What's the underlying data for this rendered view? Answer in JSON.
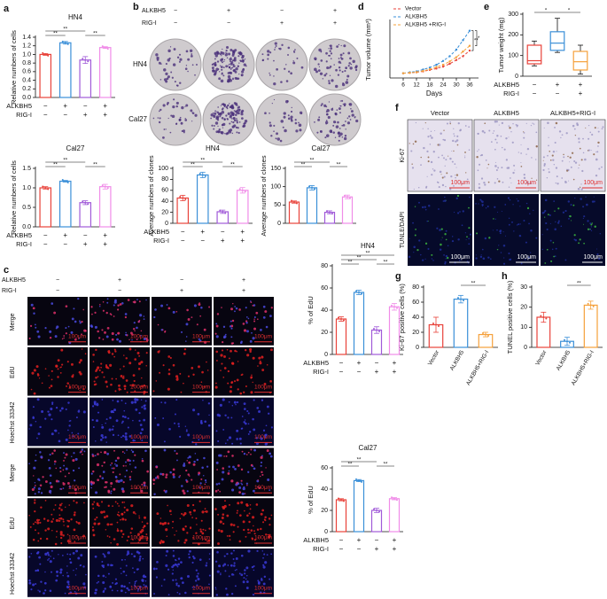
{
  "panel_labels": [
    "a",
    "b",
    "c",
    "d",
    "e",
    "f",
    "g",
    "h"
  ],
  "image_panels": {
    "b": {
      "header_rows": [
        {
          "name": "ALKBH5",
          "signs": [
            "−",
            "+",
            "−",
            "+"
          ]
        },
        {
          "name": "RIG-I",
          "signs": [
            "−",
            "−",
            "+",
            "+"
          ]
        }
      ],
      "rows": [
        "HN4",
        "Cal27"
      ]
    },
    "c": {
      "header_rows": [
        {
          "name": "ALKBH5",
          "signs": [
            "−",
            "+",
            "−",
            "+"
          ]
        },
        {
          "name": "RIG-I",
          "signs": [
            "−",
            "−",
            "+",
            "+"
          ]
        }
      ],
      "rows": [
        "Merge",
        "EdU",
        "Hoechst 33342",
        "Merge",
        "EdU",
        "Hoechst 33342"
      ],
      "scale": "100μm"
    },
    "f": {
      "columns": [
        "Vector",
        "ALKBH5",
        "ALKBH5+RIG-I"
      ],
      "rows": [
        "Ki-67",
        "TUNLE/DAPI"
      ],
      "scale": "100μm"
    }
  },
  "chart_data": [
    {
      "type": "bar",
      "title": "HN4",
      "ylabel": "Relative numbers of cells",
      "values": [
        1.0,
        1.27,
        0.87,
        1.16
      ],
      "errors": [
        0.02,
        0.03,
        0.08,
        0.02
      ],
      "colors": [
        "#e8423a",
        "#3a8fd8",
        "#a05ad8",
        "#f08ce8"
      ],
      "ylim": [
        0,
        1.4
      ],
      "yticks": [
        {
          "value": 0,
          "label": "0.0"
        },
        0.2,
        0.4,
        0.6,
        0.8,
        {
          "value": 1,
          "label": "1.0"
        },
        1.2,
        1.4
      ],
      "annotations": [
        "**",
        "**",
        "**"
      ],
      "row_labels": [
        {
          "name": "ALKBH5",
          "signs": [
            "−",
            "+",
            "−",
            "+"
          ]
        },
        {
          "name": "RIG-I",
          "signs": [
            "−",
            "−",
            "+",
            "+"
          ]
        }
      ]
    },
    {
      "type": "bar",
      "title": "Cal27",
      "ylabel": "Relative numbers of cells",
      "values": [
        1.0,
        1.17,
        0.62,
        1.03
      ],
      "errors": [
        0.03,
        0.02,
        0.05,
        0.06
      ],
      "colors": [
        "#e8423a",
        "#3a8fd8",
        "#a05ad8",
        "#f08ce8"
      ],
      "ylim": [
        0,
        1.5
      ],
      "yticks": [
        {
          "value": 0,
          "label": "0.0"
        },
        0.5,
        {
          "value": 1,
          "label": "1.0"
        },
        1.5
      ],
      "annotations": [
        "**",
        "**",
        "**"
      ],
      "row_labels": [
        {
          "name": "ALKBH5",
          "signs": [
            "−",
            "+",
            "−",
            "+"
          ]
        },
        {
          "name": "RIG-I",
          "signs": [
            "−",
            "−",
            "+",
            "+"
          ]
        }
      ]
    },
    {
      "type": "bar",
      "title": "HN4",
      "ylabel": "Average numbers of clones",
      "values": [
        46,
        88,
        21,
        60
      ],
      "errors": [
        5,
        5,
        3,
        5
      ],
      "colors": [
        "#e8423a",
        "#3a8fd8",
        "#a05ad8",
        "#f08ce8"
      ],
      "ylim": [
        0,
        100
      ],
      "yticks": [
        0,
        20,
        40,
        60,
        80,
        100
      ],
      "annotations": [
        "**",
        "**",
        "**"
      ],
      "row_labels": [
        {
          "name": "ALKBH5",
          "signs": [
            "−",
            "+",
            "−",
            "+"
          ]
        },
        {
          "name": "RIG-I",
          "signs": [
            "−",
            "−",
            "+",
            "+"
          ]
        }
      ]
    },
    {
      "type": "bar",
      "title": "Cal27",
      "ylabel": "Average numbers of clones",
      "values": [
        58,
        97,
        30,
        72
      ],
      "errors": [
        3,
        6,
        4,
        5
      ],
      "colors": [
        "#e8423a",
        "#3a8fd8",
        "#a05ad8",
        "#f08ce8"
      ],
      "ylim": [
        0,
        150
      ],
      "yticks": [
        0,
        50,
        100,
        150
      ],
      "annotations": [
        "**",
        "**",
        "**"
      ]
    },
    {
      "type": "bar",
      "title": "HN4",
      "ylabel": "% of EdU",
      "values": [
        32,
        56,
        22,
        43
      ],
      "errors": [
        2,
        2,
        3,
        3
      ],
      "colors": [
        "#e8423a",
        "#3a8fd8",
        "#a05ad8",
        "#f08ce8"
      ],
      "ylim": [
        0,
        80
      ],
      "yticks": [
        0,
        20,
        40,
        60,
        80
      ],
      "annotations": [
        "**",
        "**",
        "**",
        "**"
      ],
      "row_labels": [
        {
          "name": "ALKBH5",
          "signs": [
            "−",
            "+",
            "−",
            "+"
          ]
        },
        {
          "name": "RIG-I",
          "signs": [
            "−",
            "−",
            "+",
            "+"
          ]
        }
      ]
    },
    {
      "type": "bar",
      "title": "Cal27",
      "ylabel": "% of EdU",
      "values": [
        30,
        48,
        20,
        31
      ],
      "errors": [
        1,
        1,
        2,
        1
      ],
      "colors": [
        "#e8423a",
        "#3a8fd8",
        "#a05ad8",
        "#f08ce8"
      ],
      "ylim": [
        0,
        60
      ],
      "yticks": [
        0,
        20,
        40,
        60
      ],
      "annotations": [
        "**",
        "**",
        "**"
      ],
      "row_labels": [
        {
          "name": "ALKBH5",
          "signs": [
            "−",
            "+",
            "−",
            "+"
          ]
        },
        {
          "name": "RIG-I",
          "signs": [
            "−",
            "−",
            "+",
            "+"
          ]
        }
      ]
    },
    {
      "type": "line",
      "ylabel": "Tumor volume (mm³)",
      "xlabel": "Days",
      "x": [
        6,
        9,
        12,
        15,
        18,
        21,
        24,
        27,
        30,
        33,
        36
      ],
      "xlim": [
        0,
        40
      ],
      "xticks": [
        6,
        12,
        18,
        24,
        30,
        36
      ],
      "ylim": [
        0,
        600
      ],
      "series": [
        {
          "name": "Vector",
          "color": "#e8423a",
          "values": [
            50,
            55,
            60,
            70,
            85,
            100,
            120,
            150,
            190,
            230,
            290
          ]
        },
        {
          "name": "ALKBH5",
          "color": "#3a8fd8",
          "values": [
            50,
            60,
            70,
            90,
            110,
            140,
            180,
            230,
            300,
            400,
            500
          ]
        },
        {
          "name": "ALKBH5 +RIG-I",
          "color": "#f5a03a",
          "values": [
            50,
            55,
            62,
            75,
            92,
            115,
            140,
            175,
            220,
            280,
            340
          ]
        }
      ],
      "annotations": [
        "**",
        "*"
      ]
    },
    {
      "type": "box",
      "ylabel": "Tumor weight (mg)",
      "ylim": [
        0,
        300
      ],
      "yticks": [
        0,
        100,
        200,
        300
      ],
      "colors": [
        "#e8423a",
        "#3a8fd8",
        "#f5a03a"
      ],
      "boxes": [
        {
          "min": 50,
          "q1": 60,
          "median": 75,
          "q3": 150,
          "max": 170
        },
        {
          "min": 115,
          "q1": 125,
          "median": 160,
          "q3": 215,
          "max": 280
        },
        {
          "min": 10,
          "q1": 30,
          "median": 70,
          "q3": 120,
          "max": 150
        }
      ],
      "annotations": [
        "*",
        "*"
      ],
      "row_labels": [
        {
          "name": "ALKBH5",
          "signs": [
            "−",
            "+",
            "+"
          ]
        },
        {
          "name": "RIG-I",
          "signs": [
            "−",
            "−",
            "+"
          ]
        }
      ]
    },
    {
      "type": "bar",
      "ylabel": "Ki-67 positive cells (%)",
      "categories": [
        "Vector",
        "ALKBH5",
        "ALKBH5+RIG-I"
      ],
      "values": [
        30,
        64,
        17
      ],
      "errors": [
        10,
        5,
        3
      ],
      "colors": [
        "#e8423a",
        "#3a8fd8",
        "#f5a03a"
      ],
      "ylim": [
        0,
        80
      ],
      "yticks": [
        0,
        20,
        40,
        60,
        80
      ],
      "annotations": [
        "**"
      ]
    },
    {
      "type": "bar",
      "ylabel": "TUNEL positive cells (%)",
      "categories": [
        "Vector",
        "ALKBH5",
        "ALKBH5+RIG-I"
      ],
      "values": [
        15,
        3,
        21
      ],
      "errors": [
        2.5,
        2,
        2
      ],
      "colors": [
        "#e8423a",
        "#3a8fd8",
        "#f5a03a"
      ],
      "ylim": [
        0,
        30
      ],
      "yticks": [
        0,
        10,
        20,
        30
      ],
      "annotations": [
        "**"
      ]
    }
  ]
}
